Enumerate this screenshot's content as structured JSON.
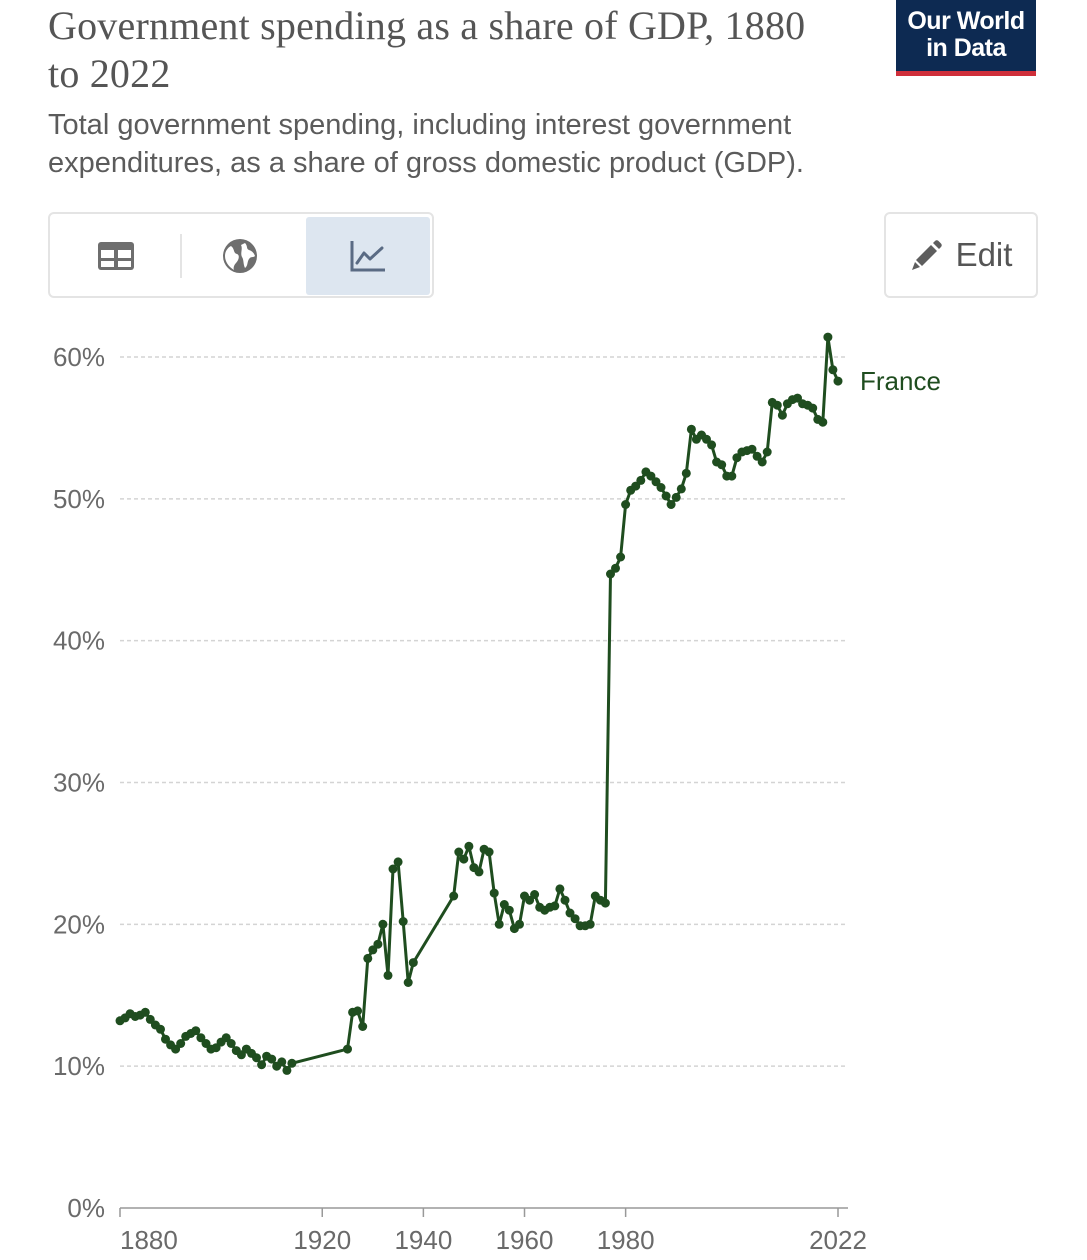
{
  "header": {
    "title": "Government spending as a share of GDP, 1880 to 2022",
    "subtitle": "Total government spending, including interest government expenditures, as a share of gross domestic product (GDP).",
    "logo_line1": "Our World",
    "logo_line2": "in Data",
    "logo_bg": "#0d2a52",
    "logo_accent": "#cf2f3a"
  },
  "toolbar": {
    "tabs": [
      {
        "icon": "table-icon",
        "active": false
      },
      {
        "icon": "globe-icon",
        "active": false
      },
      {
        "icon": "line-chart-icon",
        "active": true
      }
    ],
    "edit_label": "Edit",
    "edit_icon": "pencil-icon"
  },
  "chart_data": {
    "type": "line",
    "title": "Government spending as a share of GDP, 1880 to 2022",
    "xlabel": "",
    "ylabel": "",
    "xlim": [
      1880,
      2022
    ],
    "ylim": [
      0,
      60
    ],
    "y_ticks": [
      0,
      10,
      20,
      30,
      40,
      50,
      60
    ],
    "y_tick_labels": [
      "0%",
      "10%",
      "20%",
      "30%",
      "40%",
      "50%",
      "60%"
    ],
    "x_ticks": [
      1880,
      1920,
      1940,
      1960,
      1980,
      2022
    ],
    "x_tick_labels": [
      "1880",
      "1920",
      "1940",
      "1960",
      "1980",
      "2022"
    ],
    "grid": "horizontal dashed",
    "legend": "inline label at line end",
    "series": [
      {
        "name": "France",
        "color": "#1f4d1f",
        "points": [
          [
            1880,
            13.2
          ],
          [
            1881,
            13.4
          ],
          [
            1882,
            13.7
          ],
          [
            1883,
            13.5
          ],
          [
            1884,
            13.6
          ],
          [
            1885,
            13.8
          ],
          [
            1886,
            13.3
          ],
          [
            1887,
            12.9
          ],
          [
            1888,
            12.6
          ],
          [
            1889,
            11.9
          ],
          [
            1890,
            11.5
          ],
          [
            1891,
            11.2
          ],
          [
            1892,
            11.6
          ],
          [
            1893,
            12.1
          ],
          [
            1894,
            12.3
          ],
          [
            1895,
            12.5
          ],
          [
            1896,
            12.0
          ],
          [
            1897,
            11.6
          ],
          [
            1898,
            11.2
          ],
          [
            1899,
            11.3
          ],
          [
            1900,
            11.7
          ],
          [
            1901,
            12.0
          ],
          [
            1902,
            11.6
          ],
          [
            1903,
            11.1
          ],
          [
            1904,
            10.8
          ],
          [
            1905,
            11.2
          ],
          [
            1906,
            10.9
          ],
          [
            1907,
            10.6
          ],
          [
            1908,
            10.1
          ],
          [
            1909,
            10.7
          ],
          [
            1910,
            10.5
          ],
          [
            1911,
            10.0
          ],
          [
            1912,
            10.3
          ],
          [
            1913,
            9.7
          ],
          [
            1914,
            10.2
          ],
          [
            1925,
            11.2
          ],
          [
            1926,
            13.8
          ],
          [
            1927,
            13.9
          ],
          [
            1928,
            12.8
          ],
          [
            1929,
            17.6
          ],
          [
            1930,
            18.2
          ],
          [
            1931,
            18.6
          ],
          [
            1932,
            20.0
          ],
          [
            1933,
            16.4
          ],
          [
            1934,
            23.9
          ],
          [
            1935,
            24.4
          ],
          [
            1936,
            20.2
          ],
          [
            1937,
            15.9
          ],
          [
            1938,
            17.3
          ],
          [
            1946,
            22.0
          ],
          [
            1947,
            25.1
          ],
          [
            1948,
            24.6
          ],
          [
            1949,
            25.5
          ],
          [
            1950,
            24.0
          ],
          [
            1951,
            23.7
          ],
          [
            1952,
            25.3
          ],
          [
            1953,
            25.1
          ],
          [
            1954,
            22.2
          ],
          [
            1955,
            20.0
          ],
          [
            1956,
            21.4
          ],
          [
            1957,
            21.0
          ],
          [
            1958,
            19.7
          ],
          [
            1959,
            20.0
          ],
          [
            1960,
            22.0
          ],
          [
            1961,
            21.7
          ],
          [
            1962,
            22.1
          ],
          [
            1963,
            21.2
          ],
          [
            1964,
            21.0
          ],
          [
            1965,
            21.2
          ],
          [
            1966,
            21.3
          ],
          [
            1967,
            22.5
          ],
          [
            1968,
            21.7
          ],
          [
            1969,
            20.8
          ],
          [
            1970,
            20.4
          ],
          [
            1971,
            19.9
          ],
          [
            1972,
            19.9
          ],
          [
            1973,
            20.0
          ],
          [
            1974,
            22.0
          ],
          [
            1975,
            21.7
          ],
          [
            1976,
            21.5
          ],
          [
            1977,
            44.7
          ],
          [
            1978,
            45.1
          ],
          [
            1979,
            45.9
          ],
          [
            1980,
            49.6
          ],
          [
            1981,
            50.6
          ],
          [
            1982,
            50.9
          ],
          [
            1983,
            51.3
          ],
          [
            1984,
            51.9
          ],
          [
            1985,
            51.6
          ],
          [
            1986,
            51.2
          ],
          [
            1987,
            50.8
          ],
          [
            1988,
            50.2
          ],
          [
            1989,
            49.6
          ],
          [
            1990,
            50.1
          ],
          [
            1991,
            50.7
          ],
          [
            1992,
            51.8
          ],
          [
            1993,
            54.9
          ],
          [
            1994,
            54.2
          ],
          [
            1995,
            54.5
          ],
          [
            1996,
            54.2
          ],
          [
            1997,
            53.8
          ],
          [
            1998,
            52.6
          ],
          [
            1999,
            52.4
          ],
          [
            2000,
            51.6
          ],
          [
            2001,
            51.6
          ],
          [
            2002,
            52.9
          ],
          [
            2003,
            53.3
          ],
          [
            2004,
            53.4
          ],
          [
            2005,
            53.5
          ],
          [
            2006,
            53.0
          ],
          [
            2007,
            52.6
          ],
          [
            2008,
            53.3
          ],
          [
            2009,
            56.8
          ],
          [
            2010,
            56.6
          ],
          [
            2011,
            55.9
          ],
          [
            2012,
            56.7
          ],
          [
            2013,
            57.0
          ],
          [
            2014,
            57.1
          ],
          [
            2015,
            56.7
          ],
          [
            2016,
            56.6
          ],
          [
            2017,
            56.4
          ],
          [
            2018,
            55.6
          ],
          [
            2019,
            55.4
          ],
          [
            2020,
            61.4
          ],
          [
            2021,
            59.1
          ],
          [
            2022,
            58.3
          ]
        ]
      }
    ]
  }
}
